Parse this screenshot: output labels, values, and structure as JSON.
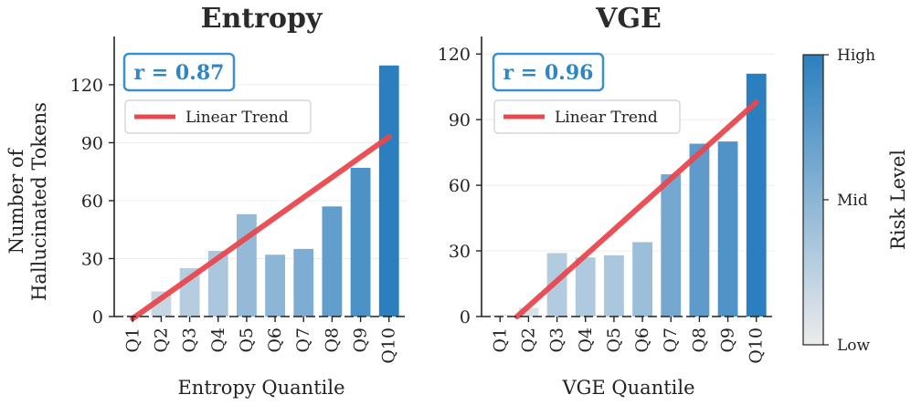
{
  "chart_data": [
    {
      "type": "bar",
      "title": "Entropy",
      "xlabel": "Entropy Quantile",
      "ylabel_lines": [
        "Number of",
        "Hallucinated Tokens"
      ],
      "categories": [
        "Q1",
        "Q2",
        "Q3",
        "Q4",
        "Q5",
        "Q6",
        "Q7",
        "Q8",
        "Q9",
        "Q10"
      ],
      "values": [
        1,
        13,
        25,
        34,
        53,
        32,
        35,
        57,
        77,
        130
      ],
      "ylim": [
        0,
        145
      ],
      "yticks": [
        0,
        30,
        60,
        90,
        120
      ],
      "ytick_labels": [
        "0",
        "30",
        "60",
        "90",
        "120"
      ],
      "risk": [
        0.0,
        0.2,
        0.28,
        0.34,
        0.46,
        0.5,
        0.58,
        0.72,
        0.83,
        1.0
      ],
      "trend": {
        "start": [
          1,
          -1
        ],
        "end": [
          10,
          93
        ]
      },
      "correlation_label": "r = 0.87",
      "legend_label": "Linear Trend"
    },
    {
      "type": "bar",
      "title": "VGE",
      "xlabel": "VGE Quantile",
      "categories": [
        "Q1",
        "Q2",
        "Q3",
        "Q4",
        "Q5",
        "Q6",
        "Q7",
        "Q8",
        "Q9",
        "Q10"
      ],
      "values": [
        1,
        4,
        29,
        27,
        28,
        34,
        65,
        79,
        80,
        111
      ],
      "ylim": [
        0,
        128
      ],
      "yticks": [
        0,
        30,
        60,
        90,
        120
      ],
      "ytick_labels": [
        "0",
        "30",
        "60",
        "90",
        "120"
      ],
      "risk": [
        0.0,
        0.1,
        0.3,
        0.32,
        0.34,
        0.42,
        0.62,
        0.74,
        0.82,
        1.0
      ],
      "trend": {
        "start": [
          1.6,
          0
        ],
        "end": [
          10,
          98
        ]
      },
      "correlation_label": "r = 0.96",
      "legend_label": "Linear Trend"
    }
  ],
  "colorbar": {
    "label": "Risk Level",
    "ticks": [
      "Low",
      "Mid",
      "High"
    ],
    "color_low": "#ececec",
    "color_high": "#2c7fbf"
  },
  "colors": {
    "trend": "#e8484f",
    "rbox_border": "#3a8fd0",
    "rbox_text": "#2f86c3",
    "axis": "#222222",
    "grid": "#ececec"
  }
}
